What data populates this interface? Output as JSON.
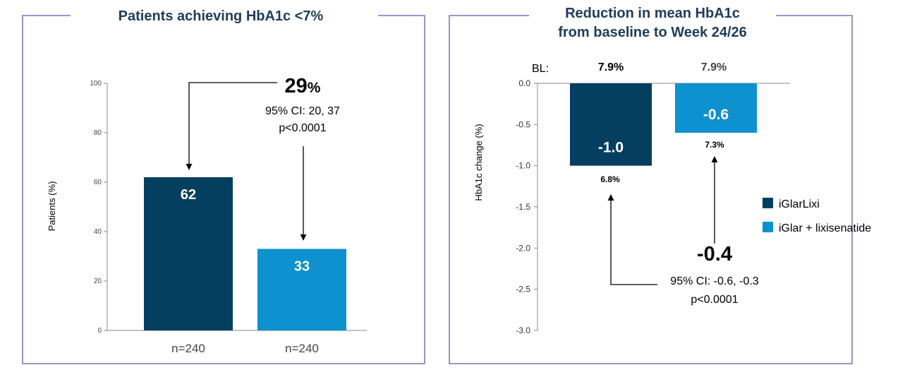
{
  "colors": {
    "frame": "#7b72b8",
    "title": "#1f3c5c",
    "dark_bar": "#053f5f",
    "light_bar": "#0d91cf",
    "axis": "#888888"
  },
  "chart_data": [
    {
      "type": "bar",
      "title": "Patients achieving HbA1c <7%",
      "ylabel": "Patients (%)",
      "ylim": [
        0,
        100
      ],
      "yticks": [
        "0",
        "20",
        "40",
        "60",
        "80",
        "100"
      ],
      "categories": [
        "n=240",
        "n=240"
      ],
      "values": [
        62,
        33
      ],
      "value_labels": [
        "62",
        "33"
      ],
      "bar_colors": [
        "#053f5f",
        "#0d91cf"
      ],
      "annotation": {
        "big_value": "29",
        "big_unit": "%",
        "ci": "95% CI: 20, 37",
        "p": "p<0.0001"
      }
    },
    {
      "type": "bar",
      "title_lines": [
        "Reduction in mean HbA1c",
        "from baseline to Week 24/26"
      ],
      "ylabel": "HbA1c change (%)",
      "ylim": [
        -3.0,
        0.0
      ],
      "yticks": [
        "0.0",
        "-0.5",
        "-1.0",
        "-1.5",
        "-2.0",
        "-2.5",
        "-3.0"
      ],
      "baseline_label": "BL:",
      "baseline_values": [
        "7.9%",
        "7.9%"
      ],
      "values": [
        -1.0,
        -0.6
      ],
      "value_labels": [
        "-1.0",
        "-0.6"
      ],
      "end_values": [
        "6.8%",
        "7.3%"
      ],
      "bar_colors": [
        "#053f5f",
        "#0d91cf"
      ],
      "legend": [
        {
          "label": "iGlarLixi",
          "color": "#053f5f"
        },
        {
          "label": "iGlar + lixisenatide",
          "color": "#0d91cf"
        }
      ],
      "legend_position": "right",
      "annotation": {
        "big_value": "-0.4",
        "ci": "95% CI: -0.6, -0.3",
        "p": "p<0.0001"
      }
    }
  ]
}
